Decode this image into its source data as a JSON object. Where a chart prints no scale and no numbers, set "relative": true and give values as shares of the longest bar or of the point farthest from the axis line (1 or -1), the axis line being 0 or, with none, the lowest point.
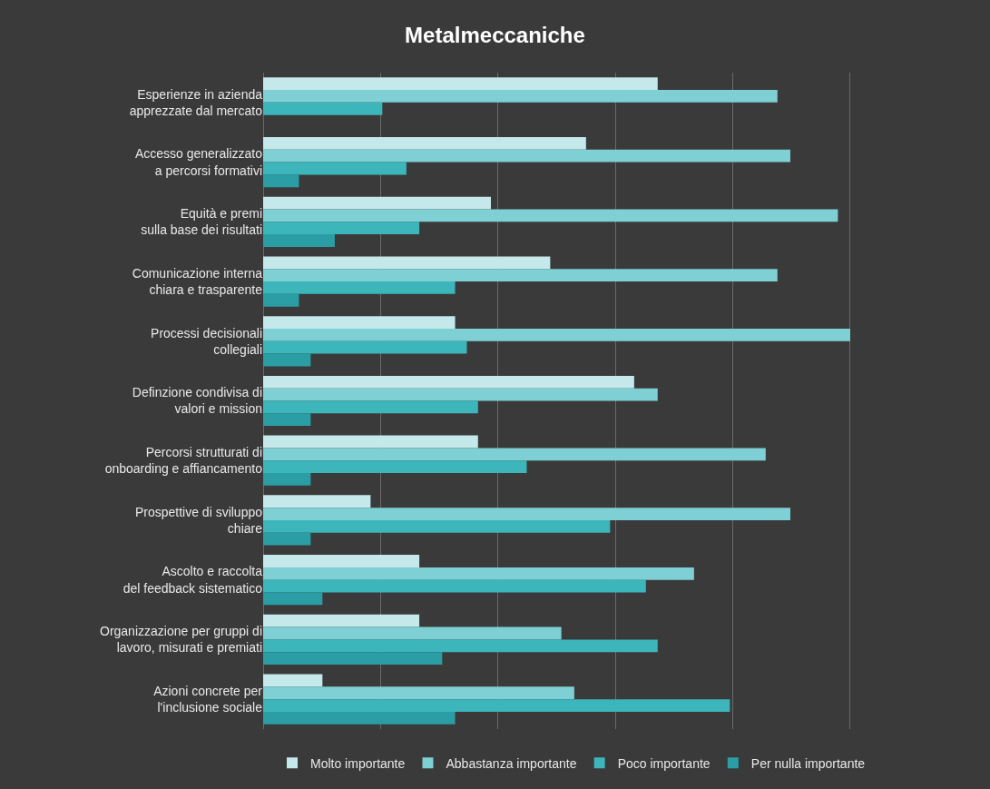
{
  "chart_data": {
    "type": "bar",
    "title": "Metalmeccaniche",
    "orientation": "horizontal",
    "relative": true,
    "grid": "x",
    "legend": "bottom",
    "categories": [
      "Esperienze in azienda\napprezzate dal mercato",
      "Accesso generalizzato\na percorsi formativi",
      "Equità e premi\nsulla base dei risultati",
      "Comunicazione interna\nchiara e trasparente",
      "Processi decisionali\ncollegiali",
      "Definzione condivisa di\nvalori e mission",
      "Percorsi strutturati di\nonboarding e affiancamento",
      "Prospettive di sviluppo\nchiare",
      "Ascolto e raccolta\ndel feedback sistematico",
      "Organizzazione per gruppi di\nlavoro, misurati e premiati",
      "Azioni concrete per\nl'inclusione sociale"
    ],
    "series": [
      {
        "name": "Molto importante",
        "color": "#c5e8ea",
        "values": [
          0.672,
          0.55,
          0.388,
          0.489,
          0.327,
          0.632,
          0.366,
          0.183,
          0.266,
          0.266,
          0.101
        ]
      },
      {
        "name": "Abbastanza importante",
        "color": "#7fd0d4",
        "values": [
          0.876,
          0.898,
          0.979,
          0.876,
          1,
          0.672,
          0.856,
          0.898,
          0.734,
          0.508,
          0.53
        ]
      },
      {
        "name": "Poco importante",
        "color": "#3cb5bb",
        "values": [
          0.203,
          0.244,
          0.266,
          0.327,
          0.347,
          0.366,
          0.449,
          0.591,
          0.652,
          0.672,
          0.795
        ]
      },
      {
        "name": "Per nulla importante",
        "color": "#2a9ea4",
        "values": [
          0,
          0.061,
          0.122,
          0.061,
          0.081,
          0.081,
          0.081,
          0.081,
          0.101,
          0.305,
          0.327
        ]
      }
    ]
  }
}
